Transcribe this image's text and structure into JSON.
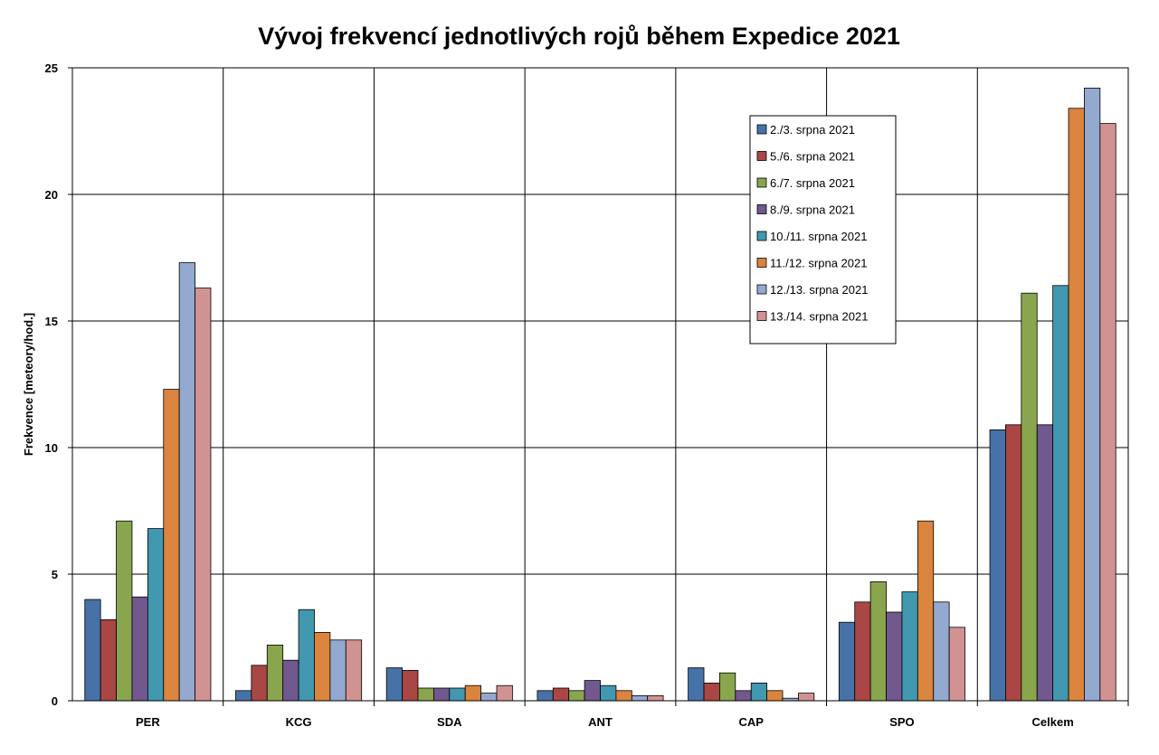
{
  "chart_data": {
    "type": "bar",
    "title": "Vývoj frekvencí jednotlivých rojů během Expedice 2021",
    "xlabel": "",
    "ylabel": "Frekvence [meteory/hod.]",
    "ylim": [
      0,
      25
    ],
    "yticks": [
      0,
      5,
      10,
      15,
      20,
      25
    ],
    "grid": true,
    "legend_position": "top-right",
    "categories": [
      "PER",
      "KCG",
      "SDA",
      "ANT",
      "CAP",
      "SPO",
      "Celkem"
    ],
    "series": [
      {
        "name": "2./3. srpna 2021",
        "color": "#4672A8",
        "values": [
          4.0,
          0.4,
          1.3,
          0.4,
          1.3,
          3.1,
          10.7
        ]
      },
      {
        "name": "5./6. srpna 2021",
        "color": "#AA4643",
        "values": [
          3.2,
          1.4,
          1.2,
          0.5,
          0.7,
          3.9,
          10.9
        ]
      },
      {
        "name": "6./7. srpna 2021",
        "color": "#89A54E",
        "values": [
          7.1,
          2.2,
          0.5,
          0.4,
          1.1,
          4.7,
          16.1
        ]
      },
      {
        "name": "8./9. srpna 2021",
        "color": "#71588F",
        "values": [
          4.1,
          1.6,
          0.5,
          0.8,
          0.4,
          3.5,
          10.9
        ]
      },
      {
        "name": "10./11. srpna 2021",
        "color": "#4198AF",
        "values": [
          6.8,
          3.6,
          0.5,
          0.6,
          0.7,
          4.3,
          16.4
        ]
      },
      {
        "name": "11./12. srpna 2021",
        "color": "#DB843D",
        "values": [
          12.3,
          2.7,
          0.6,
          0.4,
          0.4,
          7.1,
          23.4
        ]
      },
      {
        "name": "12./13. srpna 2021",
        "color": "#93A9CF",
        "values": [
          17.3,
          2.4,
          0.3,
          0.2,
          0.1,
          3.9,
          24.2
        ]
      },
      {
        "name": "13./14. srpna 2021",
        "color": "#D19392",
        "values": [
          16.3,
          2.4,
          0.6,
          0.2,
          0.3,
          2.9,
          22.8
        ]
      }
    ]
  }
}
